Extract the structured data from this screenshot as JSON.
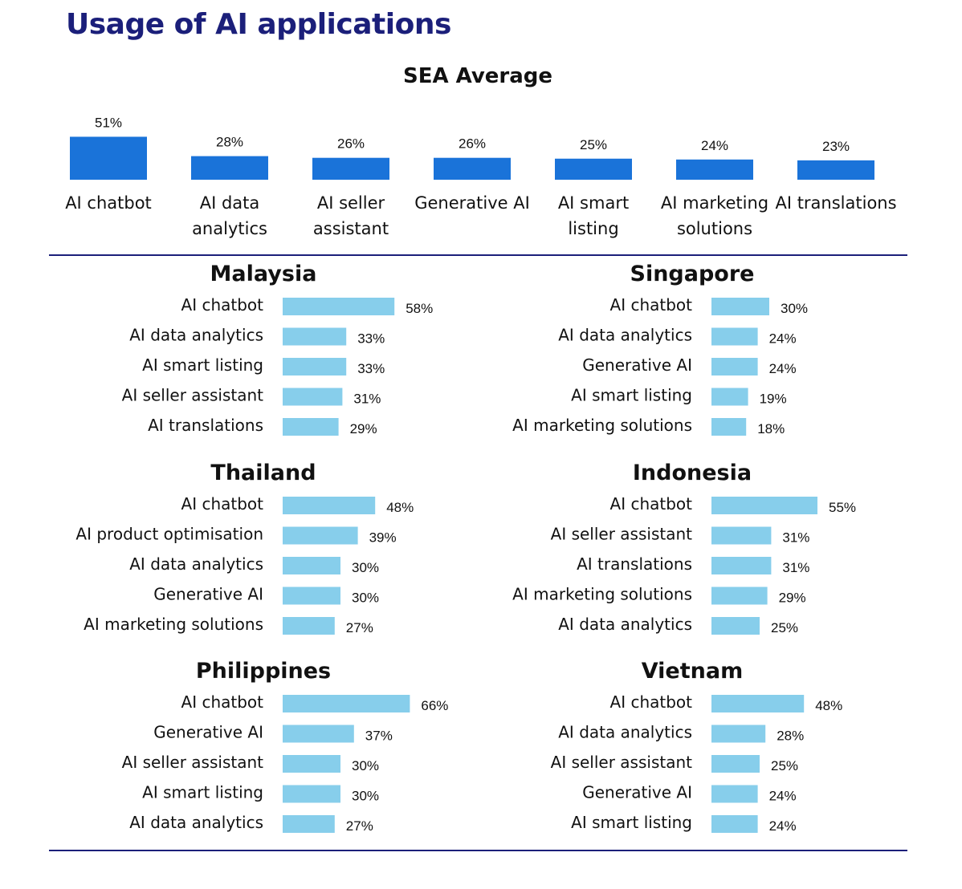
{
  "title": "Usage of AI applications",
  "colors": {
    "title": "#1b1f7a",
    "sea_bar": "#1a73d9",
    "country_bar": "#87ceeb",
    "divider": "#1b1f7a"
  },
  "chart_data": [
    {
      "type": "bar",
      "title": "SEA Average",
      "categories": [
        "AI chatbot",
        "AI data analytics",
        "AI seller assistant",
        "Generative AI",
        "AI smart listing",
        "AI marketing solutions",
        "AI translations"
      ],
      "category_lines": [
        [
          "AI chatbot"
        ],
        [
          "AI data",
          "analytics"
        ],
        [
          "AI seller",
          "assistant"
        ],
        [
          "Generative AI"
        ],
        [
          "AI smart",
          "listing"
        ],
        [
          "AI marketing",
          "solutions"
        ],
        [
          "AI translations"
        ]
      ],
      "values": [
        51,
        28,
        26,
        26,
        25,
        24,
        23
      ],
      "labels": [
        "51%",
        "28%",
        "26%",
        "26%",
        "25%",
        "24%",
        "23%"
      ],
      "orientation": "vertical"
    },
    {
      "type": "bar",
      "title": "Malaysia",
      "orientation": "horizontal",
      "categories": [
        "AI chatbot",
        "AI data analytics",
        "AI smart listing",
        "AI seller assistant",
        "AI translations"
      ],
      "values": [
        58,
        33,
        33,
        31,
        29
      ],
      "labels": [
        "58%",
        "33%",
        "33%",
        "31%",
        "29%"
      ]
    },
    {
      "type": "bar",
      "title": "Singapore",
      "orientation": "horizontal",
      "categories": [
        "AI chatbot",
        "AI data analytics",
        "Generative AI",
        "AI smart listing",
        "AI marketing solutions"
      ],
      "values": [
        30,
        24,
        24,
        19,
        18
      ],
      "labels": [
        "30%",
        "24%",
        "24%",
        "19%",
        "18%"
      ]
    },
    {
      "type": "bar",
      "title": "Thailand",
      "orientation": "horizontal",
      "categories": [
        "AI chatbot",
        "AI product optimisation",
        "AI data analytics",
        "Generative AI",
        "AI marketing solutions"
      ],
      "values": [
        48,
        39,
        30,
        30,
        27
      ],
      "labels": [
        "48%",
        "39%",
        "30%",
        "30%",
        "27%"
      ]
    },
    {
      "type": "bar",
      "title": "Indonesia",
      "orientation": "horizontal",
      "categories": [
        "AI chatbot",
        "AI seller assistant",
        "AI translations",
        "AI marketing solutions",
        "AI data analytics"
      ],
      "values": [
        55,
        31,
        31,
        29,
        25
      ],
      "labels": [
        "55%",
        "31%",
        "31%",
        "29%",
        "25%"
      ]
    },
    {
      "type": "bar",
      "title": "Philippines",
      "orientation": "horizontal",
      "categories": [
        "AI chatbot",
        "Generative AI",
        "AI seller assistant",
        "AI smart listing",
        "AI data analytics"
      ],
      "values": [
        66,
        37,
        30,
        30,
        27
      ],
      "labels": [
        "66%",
        "37%",
        "30%",
        "30%",
        "27%"
      ]
    },
    {
      "type": "bar",
      "title": "Vietnam",
      "orientation": "horizontal",
      "categories": [
        "AI chatbot",
        "AI data analytics",
        "AI seller assistant",
        "Generative AI",
        "AI smart listing"
      ],
      "values": [
        48,
        28,
        25,
        24,
        24
      ],
      "labels": [
        "48%",
        "28%",
        "25%",
        "24%",
        "24%"
      ]
    }
  ]
}
